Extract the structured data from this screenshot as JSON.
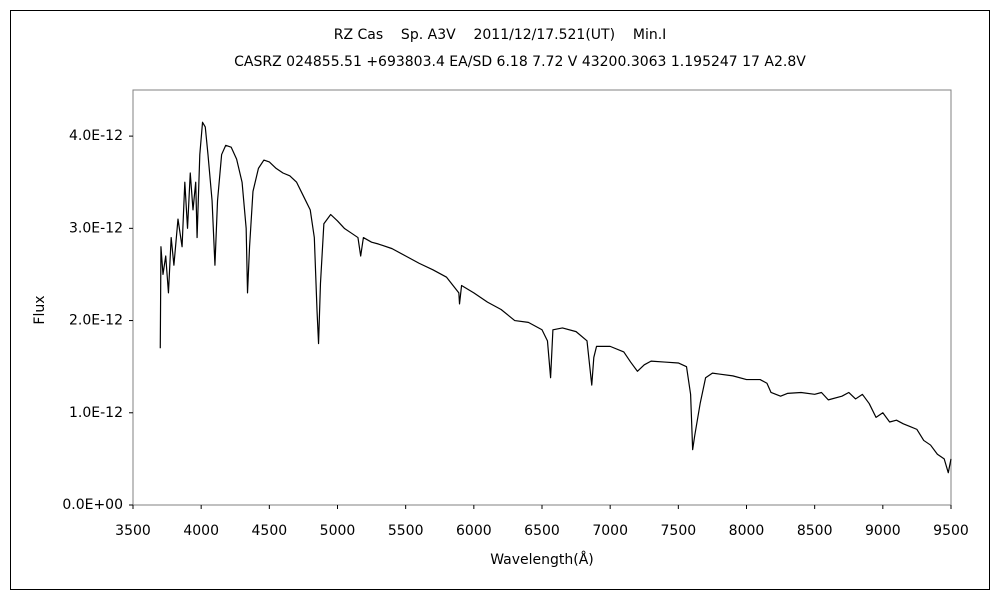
{
  "chart_data": {
    "type": "line",
    "title": "RZ Cas    Sp. A3V    2011/12/17.521(UT)    Min.I",
    "subtitle": "CASRZ 024855.51 +693803.4 EA/SD 6.18 7.72 V 43200.3063 1.195247 17 A2.8V",
    "x_label": "Wavelength(Å)",
    "y_label": "Flux",
    "xlim": [
      3500,
      9500
    ],
    "xticks": [
      3500,
      4000,
      4500,
      5000,
      5500,
      6000,
      6500,
      7000,
      7500,
      8000,
      8500,
      9000,
      9500
    ],
    "ylim": [
      0,
      4.5e-12
    ],
    "yticks": [
      {
        "value": 0,
        "label": "0.0E+00"
      },
      {
        "value": 1e-12,
        "label": "1.0E-12"
      },
      {
        "value": 2e-12,
        "label": "2.0E-12"
      },
      {
        "value": 3e-12,
        "label": "3.0E-12"
      },
      {
        "value": 4e-12,
        "label": "4.0E-12"
      }
    ],
    "grid": false,
    "series": [
      {
        "name": "Flux",
        "color": "#000000",
        "x": [
          3700,
          3705,
          3720,
          3740,
          3760,
          3780,
          3800,
          3830,
          3860,
          3880,
          3900,
          3920,
          3940,
          3960,
          3970,
          3990,
          4010,
          4030,
          4050,
          4080,
          4101,
          4120,
          4150,
          4180,
          4220,
          4260,
          4300,
          4330,
          4340,
          4355,
          4380,
          4420,
          4460,
          4500,
          4550,
          4600,
          4650,
          4700,
          4750,
          4800,
          4830,
          4850,
          4861,
          4875,
          4900,
          4950,
          5000,
          5050,
          5100,
          5150,
          5170,
          5190,
          5250,
          5300,
          5400,
          5500,
          5600,
          5700,
          5800,
          5890,
          5895,
          5910,
          6000,
          6100,
          6200,
          6300,
          6400,
          6500,
          6540,
          6563,
          6580,
          6650,
          6750,
          6830,
          6865,
          6880,
          6900,
          7000,
          7100,
          7150,
          7200,
          7250,
          7300,
          7400,
          7500,
          7560,
          7590,
          7605,
          7620,
          7660,
          7700,
          7750,
          7800,
          7900,
          8000,
          8100,
          8150,
          8180,
          8250,
          8300,
          8400,
          8500,
          8550,
          8600,
          8700,
          8750,
          8800,
          8850,
          8900,
          8950,
          9000,
          9050,
          9100,
          9150,
          9200,
          9250,
          9300,
          9350,
          9400,
          9450,
          9480,
          9500
        ],
        "values": [
          1.7e-12,
          2.8e-12,
          2.5e-12,
          2.7e-12,
          2.3e-12,
          2.9e-12,
          2.6e-12,
          3.1e-12,
          2.8e-12,
          3.5e-12,
          3e-12,
          3.6e-12,
          3.2e-12,
          3.5e-12,
          2.9e-12,
          3.8e-12,
          4.15e-12,
          4.1e-12,
          3.8e-12,
          3.3e-12,
          2.6e-12,
          3.3e-12,
          3.8e-12,
          3.9e-12,
          3.88e-12,
          3.75e-12,
          3.5e-12,
          3e-12,
          2.3e-12,
          2.8e-12,
          3.4e-12,
          3.65e-12,
          3.74e-12,
          3.72e-12,
          3.65e-12,
          3.6e-12,
          3.57e-12,
          3.5e-12,
          3.35e-12,
          3.2e-12,
          2.9e-12,
          2.1e-12,
          1.75e-12,
          2.4e-12,
          3.05e-12,
          3.15e-12,
          3.08e-12,
          3e-12,
          2.95e-12,
          2.9e-12,
          2.7e-12,
          2.9e-12,
          2.85e-12,
          2.83e-12,
          2.78e-12,
          2.7e-12,
          2.62e-12,
          2.55e-12,
          2.47e-12,
          2.3e-12,
          2.18e-12,
          2.38e-12,
          2.3e-12,
          2.2e-12,
          2.12e-12,
          2e-12,
          1.98e-12,
          1.9e-12,
          1.78e-12,
          1.38e-12,
          1.9e-12,
          1.92e-12,
          1.88e-12,
          1.78e-12,
          1.3e-12,
          1.6e-12,
          1.72e-12,
          1.72e-12,
          1.66e-12,
          1.55e-12,
          1.45e-12,
          1.52e-12,
          1.56e-12,
          1.55e-12,
          1.54e-12,
          1.5e-12,
          1.2e-12,
          6e-13,
          7.5e-13,
          1.1e-12,
          1.38e-12,
          1.43e-12,
          1.42e-12,
          1.4e-12,
          1.36e-12,
          1.36e-12,
          1.32e-12,
          1.22e-12,
          1.18e-12,
          1.21e-12,
          1.22e-12,
          1.2e-12,
          1.22e-12,
          1.14e-12,
          1.18e-12,
          1.22e-12,
          1.15e-12,
          1.2e-12,
          1.1e-12,
          9.5e-13,
          1e-12,
          9e-13,
          9.2e-13,
          8.8e-13,
          8.5e-13,
          8.2e-13,
          7e-13,
          6.5e-13,
          5.5e-13,
          5e-13,
          3.5e-13,
          5e-13
        ]
      }
    ]
  }
}
